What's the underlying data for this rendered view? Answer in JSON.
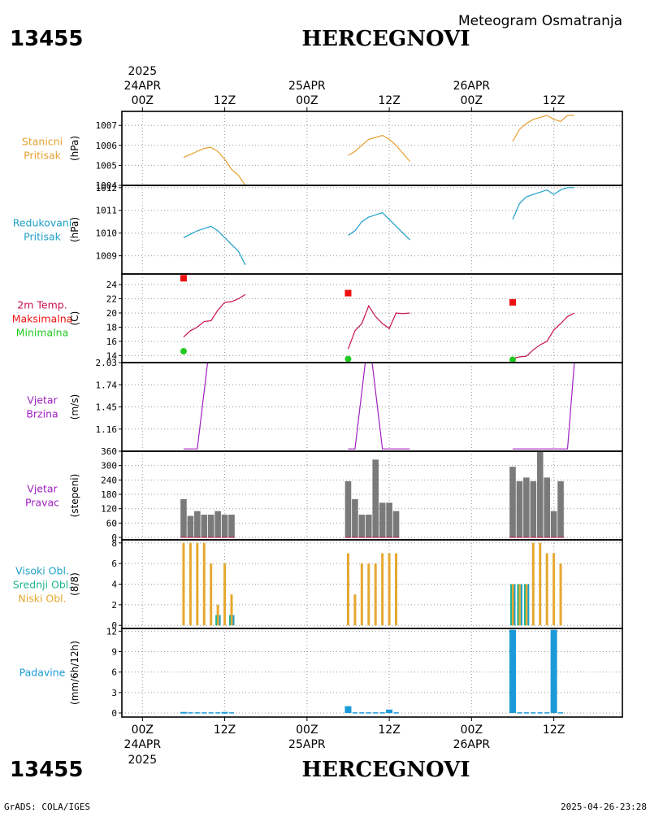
{
  "header": {
    "station_id": "13455",
    "station_name": "HERCEGNOVI",
    "subtitle": "Meteogram Osmatranja"
  },
  "footer": {
    "software": "GrADS: COLA/IGES",
    "timestamp": "2025-04-26-23:28"
  },
  "top_axis": {
    "year": "2025",
    "ticks": [
      {
        "hour": 0,
        "line1": "24APR",
        "line2": "00Z"
      },
      {
        "hour": 12,
        "line1": "",
        "line2": "12Z"
      },
      {
        "hour": 24,
        "line1": "25APR",
        "line2": "00Z"
      },
      {
        "hour": 36,
        "line1": "",
        "line2": "12Z"
      },
      {
        "hour": 48,
        "line1": "26APR",
        "line2": "00Z"
      },
      {
        "hour": 60,
        "line1": "",
        "line2": "12Z"
      }
    ]
  },
  "bottom_axis": {
    "year": "2025",
    "ticks": [
      {
        "hour": 0,
        "line1": "00Z",
        "line2": "24APR"
      },
      {
        "hour": 12,
        "line1": "12Z",
        "line2": ""
      },
      {
        "hour": 24,
        "line1": "00Z",
        "line2": "25APR"
      },
      {
        "hour": 36,
        "line1": "12Z",
        "line2": ""
      },
      {
        "hour": 48,
        "line1": "00Z",
        "line2": "26APR"
      },
      {
        "hour": 60,
        "line1": "12Z",
        "line2": ""
      }
    ]
  },
  "colors": {
    "station_pressure": "#e6a030",
    "reduced_pressure": "#1ea0c8",
    "temperature": "#c8104a",
    "tmax": "#ee1010",
    "tmin": "#22c822",
    "wind": "#a020c0",
    "wind_dir_bar": "#7a7a7a",
    "cloud_low": "#e6a830",
    "cloud_mid": "#20b490",
    "cloud_high": "#1ea0c8",
    "precip": "#1a9ad8",
    "grid": "#999999"
  },
  "chart_data": {
    "type": "meteogram",
    "x_unit": "hours since 2025-04-24 00Z",
    "xlim": [
      -3,
      70
    ],
    "panels": [
      {
        "id": "station_pressure",
        "type": "line",
        "labels": [
          "Stanicni",
          "Pritisak"
        ],
        "ylabel": "(hPa)",
        "ylim": [
          1004,
          1007.7
        ],
        "yticks": [
          1004,
          1005,
          1006,
          1007
        ],
        "series": [
          {
            "points": [
              [
                6,
                1005.4
              ],
              [
                7,
                1005.55
              ],
              [
                8,
                1005.7
              ],
              [
                9,
                1005.85
              ],
              [
                10,
                1005.9
              ],
              [
                11,
                1005.7
              ],
              [
                12,
                1005.3
              ],
              [
                13,
                1004.8
              ],
              [
                14,
                1004.5
              ],
              [
                15,
                1004.0
              ]
            ]
          },
          {
            "points": [
              [
                30,
                1005.5
              ],
              [
                31,
                1005.7
              ],
              [
                32,
                1006.0
              ],
              [
                33,
                1006.3
              ],
              [
                34,
                1006.4
              ],
              [
                35,
                1006.5
              ],
              [
                36,
                1006.3
              ],
              [
                37,
                1006.0
              ],
              [
                38,
                1005.6
              ],
              [
                39,
                1005.2
              ]
            ]
          },
          {
            "points": [
              [
                54,
                1006.2
              ],
              [
                55,
                1006.8
              ],
              [
                56,
                1007.1
              ],
              [
                57,
                1007.3
              ],
              [
                58,
                1007.4
              ],
              [
                59,
                1007.5
              ],
              [
                60,
                1007.3
              ],
              [
                61,
                1007.2
              ],
              [
                62,
                1007.5
              ],
              [
                63,
                1007.5
              ]
            ]
          }
        ]
      },
      {
        "id": "reduced_pressure",
        "type": "line",
        "labels": [
          "Redukovani",
          "Pritisak"
        ],
        "ylabel": "(hPa)",
        "ylim": [
          1008.2,
          1012.1
        ],
        "yticks": [
          1009,
          1010,
          1011,
          1012
        ],
        "series": [
          {
            "points": [
              [
                6,
                1009.8
              ],
              [
                7,
                1009.95
              ],
              [
                8,
                1010.1
              ],
              [
                9,
                1010.2
              ],
              [
                10,
                1010.3
              ],
              [
                11,
                1010.1
              ],
              [
                12,
                1009.8
              ],
              [
                13,
                1009.5
              ],
              [
                14,
                1009.2
              ],
              [
                15,
                1008.6
              ]
            ]
          },
          {
            "points": [
              [
                30,
                1009.9
              ],
              [
                31,
                1010.1
              ],
              [
                32,
                1010.5
              ],
              [
                33,
                1010.7
              ],
              [
                34,
                1010.8
              ],
              [
                35,
                1010.9
              ],
              [
                36,
                1010.6
              ],
              [
                37,
                1010.3
              ],
              [
                38,
                1010.0
              ],
              [
                39,
                1009.7
              ]
            ]
          },
          {
            "points": [
              [
                54,
                1010.6
              ],
              [
                55,
                1011.3
              ],
              [
                56,
                1011.6
              ],
              [
                57,
                1011.7
              ],
              [
                58,
                1011.8
              ],
              [
                59,
                1011.9
              ],
              [
                60,
                1011.7
              ],
              [
                61,
                1011.9
              ],
              [
                62,
                1012.0
              ],
              [
                63,
                1012.0
              ]
            ]
          }
        ]
      },
      {
        "id": "temperature",
        "type": "line",
        "labels": [
          "2m Temp.",
          "Maksimalna",
          "Minimalna"
        ],
        "ylabel": "(C)",
        "ylim": [
          13,
          25.5
        ],
        "yticks": [
          14,
          16,
          18,
          20,
          22,
          24
        ],
        "series": [
          {
            "points": [
              [
                6,
                16.6
              ],
              [
                7,
                17.5
              ],
              [
                8,
                18.0
              ],
              [
                9,
                18.8
              ],
              [
                10,
                18.9
              ],
              [
                11,
                20.4
              ],
              [
                12,
                21.5
              ],
              [
                13,
                21.6
              ],
              [
                14,
                22.0
              ],
              [
                15,
                22.6
              ]
            ]
          },
          {
            "points": [
              [
                30,
                14.9
              ],
              [
                31,
                17.5
              ],
              [
                32,
                18.5
              ],
              [
                33,
                21.0
              ],
              [
                34,
                19.5
              ],
              [
                35,
                18.5
              ],
              [
                36,
                17.8
              ],
              [
                37,
                20.0
              ],
              [
                38,
                19.9
              ],
              [
                39,
                20.0
              ]
            ]
          },
          {
            "points": [
              [
                54,
                13.6
              ],
              [
                55,
                13.8
              ],
              [
                56,
                13.9
              ],
              [
                57,
                14.8
              ],
              [
                58,
                15.5
              ],
              [
                59,
                16.0
              ],
              [
                60,
                17.6
              ],
              [
                61,
                18.5
              ],
              [
                62,
                19.5
              ],
              [
                63,
                20.0
              ]
            ]
          }
        ],
        "tmax": [
          [
            6,
            24.9
          ],
          [
            30,
            22.8
          ],
          [
            54,
            21.5
          ]
        ],
        "tmin": [
          [
            6,
            14.6
          ],
          [
            30,
            13.5
          ],
          [
            54,
            13.4
          ]
        ]
      },
      {
        "id": "wind_speed",
        "type": "line",
        "labels": [
          "Vjetar",
          "Brzina"
        ],
        "ylabel": "(m/s)",
        "ylim": [
          0.87,
          2.03
        ],
        "yticks": [
          1.16,
          1.45,
          1.74,
          2.03
        ],
        "series": [
          {
            "points": [
              [
                6,
                0.9
              ],
              [
                8,
                0.9
              ],
              [
                9.5,
                2.03
              ],
              [
                14,
                2.03
              ]
            ]
          },
          {
            "points": [
              [
                30,
                0.9
              ],
              [
                31,
                0.9
              ],
              [
                32.5,
                2.03
              ],
              [
                33.5,
                2.03
              ],
              [
                35,
                0.9
              ],
              [
                39,
                0.9
              ]
            ]
          },
          {
            "points": [
              [
                54,
                0.9
              ],
              [
                62,
                0.9
              ],
              [
                63,
                2.03
              ]
            ]
          }
        ]
      },
      {
        "id": "wind_direction",
        "type": "bar",
        "labels": [
          "Vjetar",
          "Pravac"
        ],
        "ylabel": "(stepeni)",
        "ylim": [
          -10,
          360
        ],
        "yticks": [
          0,
          60,
          120,
          180,
          240,
          300,
          360
        ],
        "bars": [
          [
            6,
            160
          ],
          [
            7,
            90
          ],
          [
            8,
            110
          ],
          [
            9,
            95
          ],
          [
            10,
            95
          ],
          [
            11,
            110
          ],
          [
            12,
            95
          ],
          [
            13,
            95
          ],
          [
            30,
            235
          ],
          [
            31,
            160
          ],
          [
            32,
            95
          ],
          [
            33,
            95
          ],
          [
            34,
            325
          ],
          [
            35,
            145
          ],
          [
            36,
            145
          ],
          [
            37,
            110
          ],
          [
            54,
            295
          ],
          [
            55,
            235
          ],
          [
            56,
            250
          ],
          [
            57,
            235
          ],
          [
            58,
            360
          ],
          [
            59,
            250
          ],
          [
            60,
            110
          ],
          [
            61,
            235
          ]
        ]
      },
      {
        "id": "clouds",
        "type": "bar",
        "labels": [
          "Visoki Obl.",
          "Srednji Obl.",
          "Niski Obl."
        ],
        "ylabel": "(8/8)",
        "ylim": [
          -0.3,
          8.3
        ],
        "yticks": [
          0,
          2,
          4,
          6,
          8
        ],
        "low": [
          [
            6,
            8
          ],
          [
            7,
            8
          ],
          [
            8,
            8
          ],
          [
            9,
            8
          ],
          [
            10,
            6
          ],
          [
            11,
            2
          ],
          [
            12,
            6
          ],
          [
            13,
            3
          ],
          [
            30,
            7
          ],
          [
            31,
            3
          ],
          [
            32,
            6
          ],
          [
            33,
            6
          ],
          [
            34,
            6
          ],
          [
            35,
            7
          ],
          [
            36,
            7
          ],
          [
            37,
            7
          ],
          [
            54,
            4
          ],
          [
            55,
            4
          ],
          [
            56,
            4
          ],
          [
            57,
            8
          ],
          [
            58,
            8
          ],
          [
            59,
            7
          ],
          [
            60,
            7
          ],
          [
            61,
            6
          ]
        ],
        "mid": [
          [
            11,
            1
          ],
          [
            13,
            1
          ],
          [
            54,
            4
          ],
          [
            55,
            4
          ],
          [
            56,
            4
          ]
        ],
        "high": [
          [
            11,
            1
          ],
          [
            13,
            1
          ],
          [
            54,
            4
          ],
          [
            55,
            4
          ],
          [
            56,
            4
          ]
        ]
      },
      {
        "id": "precipitation",
        "type": "bar",
        "labels": [
          "Padavine"
        ],
        "ylabel": "(mm/6h/12h)",
        "ylim": [
          -0.6,
          12.4
        ],
        "yticks": [
          0,
          3,
          6,
          9,
          12
        ],
        "bars": [
          [
            6,
            0.15
          ],
          [
            12,
            0.15
          ],
          [
            30,
            1.0
          ],
          [
            36,
            0.5
          ],
          [
            54,
            12.2
          ],
          [
            60,
            12.2
          ]
        ],
        "small": [
          [
            7,
            0.1
          ],
          [
            8,
            0.1
          ],
          [
            9,
            0.1
          ],
          [
            10,
            0.1
          ],
          [
            11,
            0.1
          ],
          [
            13,
            0.1
          ],
          [
            31,
            0.1
          ],
          [
            32,
            0.1
          ],
          [
            33,
            0.1
          ],
          [
            34,
            0.1
          ],
          [
            35,
            0.1
          ],
          [
            37,
            0.1
          ],
          [
            55,
            0.1
          ],
          [
            56,
            0.1
          ],
          [
            57,
            0.1
          ],
          [
            58,
            0.1
          ],
          [
            59,
            0.1
          ],
          [
            61,
            0.1
          ]
        ]
      }
    ]
  }
}
